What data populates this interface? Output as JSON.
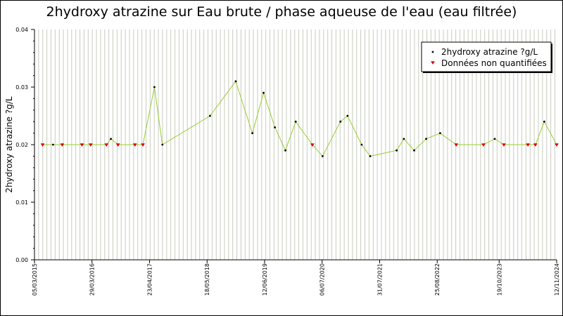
{
  "chart_data": {
    "type": "scatter",
    "title": "2hydroxy atrazine sur Eau brute / phase aqueuse de l'eau (eau filtrée)",
    "ylabel": "2hydroxy atrazine ?g/L",
    "xlabel": "",
    "ylim": [
      0,
      0.04
    ],
    "y_ticks": [
      "0.00",
      "0.01",
      "0.02",
      "0.03",
      "0.04"
    ],
    "x_range": [
      "2015-03-05",
      "2024-11-12"
    ],
    "x_ticks": [
      "05/03/2015",
      "29/03/2016",
      "23/04/2017",
      "18/05/2018",
      "12/06/2019",
      "06/07/2020",
      "31/07/2021",
      "25/08/2022",
      "19/10/2023",
      "12/11/2024"
    ],
    "grid": "vertical",
    "legend_position": "top-right",
    "line_color": "#99cc33",
    "series": [
      {
        "name": "2hydroxy atrazine ?g/L",
        "color": "#000000",
        "points": [
          {
            "x": "2015-07-09",
            "y": 0.02
          },
          {
            "x": "2016-08-04",
            "y": 0.021
          },
          {
            "x": "2017-05-26",
            "y": 0.03
          },
          {
            "x": "2017-07-19",
            "y": 0.02
          },
          {
            "x": "2018-06-07",
            "y": 0.025
          },
          {
            "x": "2018-11-28",
            "y": 0.031
          },
          {
            "x": "2019-03-21",
            "y": 0.022
          },
          {
            "x": "2019-06-05",
            "y": 0.029
          },
          {
            "x": "2019-08-21",
            "y": 0.023
          },
          {
            "x": "2019-10-31",
            "y": 0.019
          },
          {
            "x": "2020-01-09",
            "y": 0.024
          },
          {
            "x": "2020-07-09",
            "y": 0.018
          },
          {
            "x": "2020-11-07",
            "y": 0.024
          },
          {
            "x": "2020-12-25",
            "y": 0.025
          },
          {
            "x": "2021-03-31",
            "y": 0.02
          },
          {
            "x": "2021-05-28",
            "y": 0.018
          },
          {
            "x": "2021-11-23",
            "y": 0.019
          },
          {
            "x": "2022-01-11",
            "y": 0.021
          },
          {
            "x": "2022-03-22",
            "y": 0.019
          },
          {
            "x": "2022-06-11",
            "y": 0.021
          },
          {
            "x": "2022-09-14",
            "y": 0.022
          },
          {
            "x": "2023-09-19",
            "y": 0.021
          },
          {
            "x": "2024-08-20",
            "y": 0.024
          }
        ]
      },
      {
        "name": "Données non quantifiées",
        "color": "#dd0000",
        "points": [
          {
            "x": "2015-04-29",
            "y": 0.02
          },
          {
            "x": "2015-09-09",
            "y": 0.02
          },
          {
            "x": "2016-01-21",
            "y": 0.02
          },
          {
            "x": "2016-03-20",
            "y": 0.02
          },
          {
            "x": "2016-07-05",
            "y": 0.02
          },
          {
            "x": "2016-09-21",
            "y": 0.02
          },
          {
            "x": "2017-01-14",
            "y": 0.02
          },
          {
            "x": "2017-03-09",
            "y": 0.02
          },
          {
            "x": "2020-05-01",
            "y": 0.02
          },
          {
            "x": "2023-01-01",
            "y": 0.02
          },
          {
            "x": "2023-07-05",
            "y": 0.02
          },
          {
            "x": "2023-11-20",
            "y": 0.02
          },
          {
            "x": "2024-05-01",
            "y": 0.02
          },
          {
            "x": "2024-06-21",
            "y": 0.02
          },
          {
            "x": "2024-11-12",
            "y": 0.02
          }
        ]
      }
    ]
  }
}
